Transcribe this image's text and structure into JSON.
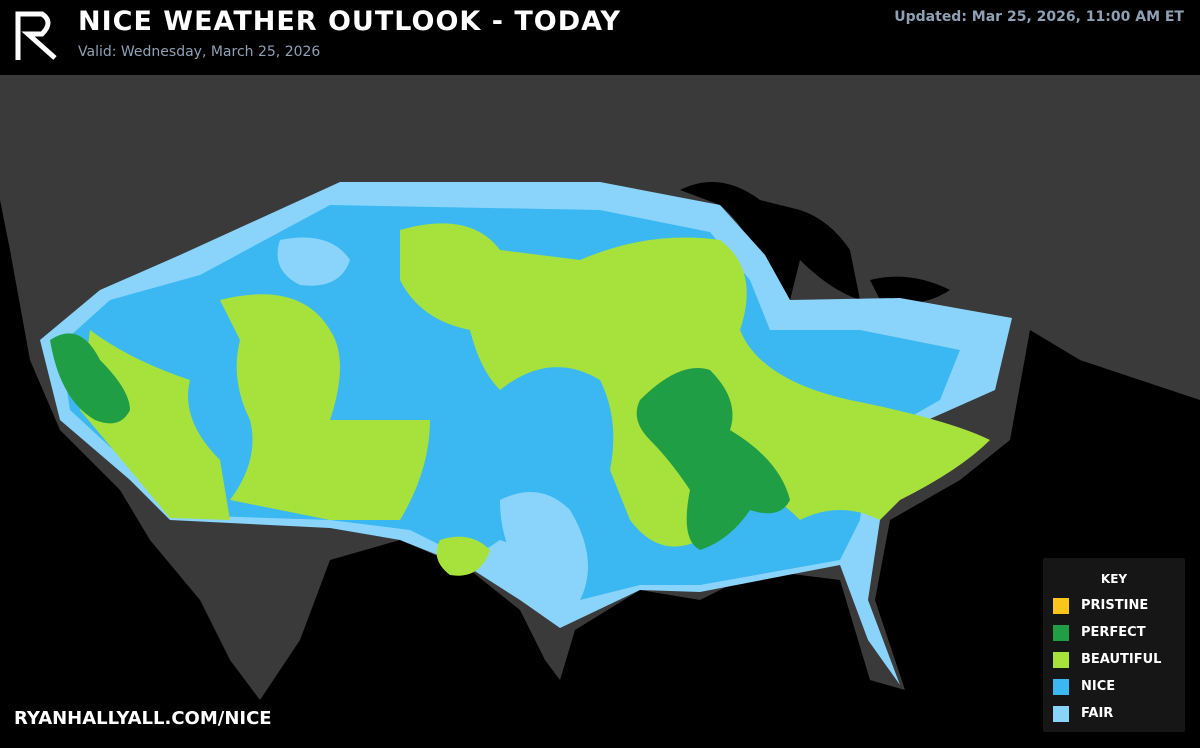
{
  "header": {
    "title": "NICE WEATHER OUTLOOK - TODAY",
    "valid": "Valid: Wednesday, March 25, 2026",
    "updated": "Updated: Mar 25, 2026, 11:00 AM ET"
  },
  "footer": {
    "website": "RYANHALLYALL.COM/NICE"
  },
  "key": {
    "title": "KEY",
    "items": [
      {
        "label": "PRISTINE",
        "color": "#f9c51b"
      },
      {
        "label": "PERFECT",
        "color": "#1f9e45"
      },
      {
        "label": "BEAUTIFUL",
        "color": "#a7e23c"
      },
      {
        "label": "NICE",
        "color": "#3bb8f1"
      },
      {
        "label": "FAIR",
        "color": "#8ad4fb"
      }
    ]
  }
}
